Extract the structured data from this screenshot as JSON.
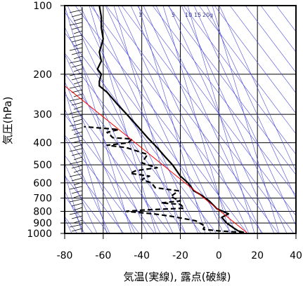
{
  "chart_data": {
    "type": "line",
    "xlabel": "気温(実線), 露点(破線)",
    "ylabel": "気圧(hPa)",
    "xlim": [
      -80,
      40
    ],
    "ylim": [
      1000,
      100
    ],
    "y_scale": "log",
    "x_ticks": [
      "-80",
      "-60",
      "-40",
      "-20",
      "0",
      "20",
      "40"
    ],
    "y_ticks": [
      {
        "p": 100,
        "label": "100"
      },
      {
        "p": 200,
        "label": "200"
      },
      {
        "p": 300,
        "label": "300"
      },
      {
        "p": 400,
        "label": "400"
      },
      {
        "p": 500,
        "label": "500"
      },
      {
        "p": 600,
        "label": "600"
      },
      {
        "p": 700,
        "label": "700"
      },
      {
        "p": 800,
        "label": "800"
      },
      {
        "p": 900,
        "label": "900"
      },
      {
        "p": 1000,
        "label": "1000"
      }
    ],
    "grid": true,
    "mixing_ratio_labels": [
      "1",
      "5",
      "10",
      "15",
      "20",
      "g"
    ],
    "series": [
      {
        "style": "solid",
        "color": "#000000",
        "points": [
          [
            13,
            990
          ],
          [
            10,
            975
          ],
          [
            8,
            950
          ],
          [
            4,
            900
          ],
          [
            1.5,
            850
          ],
          [
            5,
            820
          ],
          [
            -1,
            780
          ],
          [
            -5,
            720
          ],
          [
            -9,
            680
          ],
          [
            -13,
            650
          ],
          [
            -16,
            600
          ],
          [
            -20,
            560
          ],
          [
            -24,
            500
          ],
          [
            -28,
            460
          ],
          [
            -32,
            420
          ],
          [
            -37,
            380
          ],
          [
            -42,
            340
          ],
          [
            -47,
            305
          ],
          [
            -52,
            275
          ],
          [
            -58,
            240
          ],
          [
            -62,
            225
          ],
          [
            -62,
            215
          ],
          [
            -61,
            200
          ],
          [
            -63,
            190
          ],
          [
            -61,
            175
          ],
          [
            -62,
            160
          ],
          [
            -60,
            140
          ],
          [
            -61,
            125
          ],
          [
            -61,
            112
          ],
          [
            -62,
            100
          ]
        ]
      },
      {
        "style": "dashed",
        "color": "#000000",
        "points": [
          [
            13,
            990
          ],
          [
            0,
            975
          ],
          [
            -8,
            960
          ],
          [
            -8,
            950
          ],
          [
            -7,
            930
          ],
          [
            -10,
            900
          ],
          [
            -12,
            880
          ],
          [
            -25,
            840
          ],
          [
            -34,
            820
          ],
          [
            -48,
            800
          ],
          [
            -40,
            790
          ],
          [
            -18,
            775
          ],
          [
            -20,
            745
          ],
          [
            -30,
            735
          ],
          [
            -20,
            720
          ],
          [
            -25,
            690
          ],
          [
            -21,
            650
          ],
          [
            -33,
            630
          ],
          [
            -35,
            600
          ],
          [
            -40,
            580
          ],
          [
            -36,
            560
          ],
          [
            -46,
            545
          ],
          [
            -43,
            530
          ],
          [
            -32,
            515
          ],
          [
            -40,
            490
          ],
          [
            -37,
            450
          ],
          [
            -48,
            420
          ],
          [
            -58,
            410
          ],
          [
            -47,
            400
          ],
          [
            -45,
            385
          ],
          [
            -55,
            380
          ],
          [
            -58,
            360
          ],
          [
            -52,
            350
          ],
          [
            -70,
            340
          ]
        ]
      },
      {
        "style": "solid",
        "color": "#ff0000",
        "points": [
          [
            15,
            1000
          ],
          [
            -80,
            225
          ]
        ]
      }
    ]
  }
}
